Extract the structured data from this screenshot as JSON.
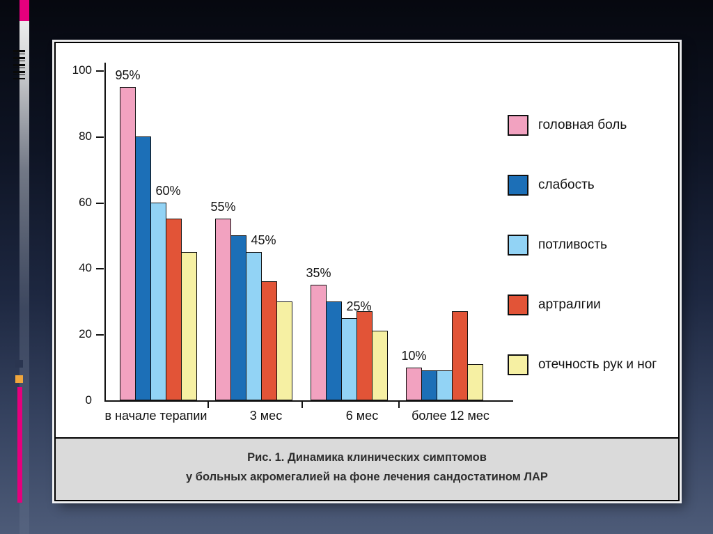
{
  "slide": {
    "figure_caption": {
      "line1": "Рис. 1. Динамика клинических симптомов",
      "line2": "у больных акромегалией на фоне лечения сандостатином ЛАР"
    }
  },
  "theme": {
    "bg_top": "#06080f",
    "bg_bottom": "#4d5b78",
    "accent_magenta": "#e5007d",
    "accent_orange": "#f0a63c",
    "accent_navy": "#2a3550",
    "panel_bg": "#ffffff",
    "caption_bg": "#dadada",
    "ink": "#111111"
  },
  "chart_data": {
    "type": "bar",
    "title": "Рис. 1. Динамика клинических симптомов у больных акромегалией на фоне лечения сандостатином ЛАР",
    "categories": [
      "в начале терапии",
      "3 мес",
      "6 мес",
      "более 12 мес"
    ],
    "series": [
      {
        "name": "головная боль",
        "color": "#f2a2c0",
        "values": [
          95,
          55,
          35,
          10
        ]
      },
      {
        "name": "слабость",
        "color": "#1c6fb7",
        "values": [
          80,
          50,
          30,
          9
        ]
      },
      {
        "name": "потливость",
        "color": "#92d3f5",
        "values": [
          60,
          45,
          25,
          9
        ]
      },
      {
        "name": "артралгии",
        "color": "#e25437",
        "values": [
          55,
          36,
          27,
          27
        ]
      },
      {
        "name": "отечность рук и ног",
        "color": "#f6f0a3",
        "values": [
          45,
          30,
          21,
          11
        ]
      }
    ],
    "value_labels": [
      {
        "group": 0,
        "series": 0,
        "text": "95%"
      },
      {
        "group": 0,
        "series": 2,
        "text": "60%"
      },
      {
        "group": 1,
        "series": 0,
        "text": "55%"
      },
      {
        "group": 1,
        "series": 2,
        "text": "45%"
      },
      {
        "group": 2,
        "series": 0,
        "text": "35%"
      },
      {
        "group": 2,
        "series": 2,
        "text": "25%"
      },
      {
        "group": 3,
        "series": 0,
        "text": "10%"
      }
    ],
    "y_ticks": [
      100,
      80,
      60,
      40,
      20,
      0
    ],
    "ylim": [
      0,
      100
    ],
    "xlabel": "",
    "ylabel": "",
    "grid": false,
    "legend_position": "right"
  }
}
